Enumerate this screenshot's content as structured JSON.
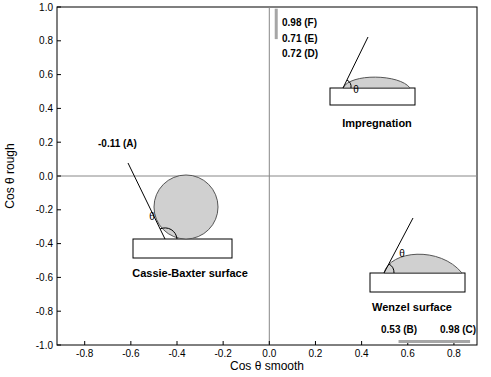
{
  "chart_data": {
    "type": "line",
    "x_label": "Cos θ smooth",
    "y_label": "Cos θ rough",
    "xlim": [
      -0.92,
      0.9
    ],
    "ylim": [
      -1,
      1
    ],
    "xticks": [
      -0.8,
      -0.6,
      -0.4,
      -0.2,
      {
        "value": 0,
        "label": "0.0"
      },
      0.2,
      0.4,
      0.6,
      0.8
    ],
    "yticks": [
      {
        "value": -1,
        "label": "-1.0"
      },
      -0.8,
      -0.6,
      -0.4,
      -0.2,
      {
        "value": 0,
        "label": "0.0"
      },
      0.2,
      0.4,
      0.6,
      0.8,
      {
        "value": 1,
        "label": "1.0"
      }
    ],
    "grid": false,
    "series": [
      {
        "color": "#a6a6a6",
        "x": [
          0.03,
          0.03
        ],
        "values": [
          0.81,
          0.99
        ]
      },
      {
        "color": "#a6a6a6",
        "x": [
          0.56,
          0.87
        ],
        "values": [
          -0.98,
          -0.98
        ]
      }
    ],
    "annotations": [
      "0.98 (F)",
      "0.71 (E)",
      "0.72 (D)",
      "-0.11 (A)",
      "0.53 (B)",
      "0.98 (C)",
      "Impregnation",
      "Cassie-Baxter surface",
      "Wenzel surface",
      "θ",
      "θ",
      "θ"
    ]
  }
}
